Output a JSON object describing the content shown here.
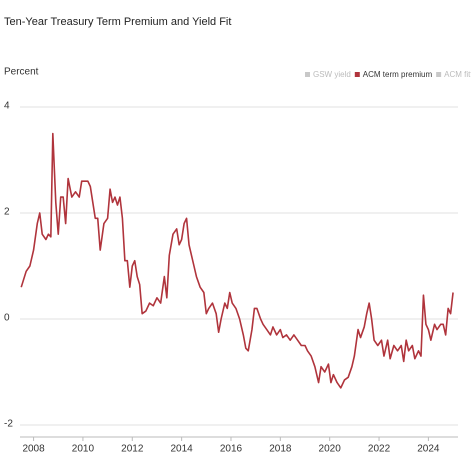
{
  "chart_data": {
    "type": "line",
    "title": "Ten-Year Treasury Term Premium and Yield Fit",
    "y_label": "Percent",
    "legend": [
      {
        "name": "GSW yield",
        "color": "#c8c8c8"
      },
      {
        "name": "ACM term premium",
        "color": "#b0343c"
      },
      {
        "name": "ACM fitted yield",
        "color": "#c8c8c8"
      }
    ],
    "x": [
      2007.5,
      2007.7,
      2007.85,
      2008.0,
      2008.15,
      2008.25,
      2008.35,
      2008.5,
      2008.6,
      2008.7,
      2008.78,
      2008.9,
      2009.0,
      2009.1,
      2009.2,
      2009.3,
      2009.4,
      2009.55,
      2009.7,
      2009.85,
      2009.95,
      2010.1,
      2010.2,
      2010.3,
      2010.4,
      2010.5,
      2010.6,
      2010.7,
      2010.85,
      2011.0,
      2011.1,
      2011.2,
      2011.3,
      2011.4,
      2011.5,
      2011.6,
      2011.7,
      2011.8,
      2011.9,
      2012.0,
      2012.1,
      2012.2,
      2012.3,
      2012.4,
      2012.55,
      2012.7,
      2012.85,
      2013.0,
      2013.15,
      2013.3,
      2013.4,
      2013.5,
      2013.65,
      2013.8,
      2013.9,
      2014.0,
      2014.1,
      2014.2,
      2014.3,
      2014.4,
      2014.5,
      2014.6,
      2014.75,
      2014.9,
      2015.0,
      2015.1,
      2015.25,
      2015.4,
      2015.5,
      2015.6,
      2015.75,
      2015.85,
      2015.95,
      2016.05,
      2016.2,
      2016.35,
      2016.5,
      2016.6,
      2016.7,
      2016.85,
      2016.95,
      2017.05,
      2017.2,
      2017.3,
      2017.45,
      2017.6,
      2017.7,
      2017.85,
      2018.0,
      2018.1,
      2018.25,
      2018.4,
      2018.55,
      2018.7,
      2018.85,
      2019.0,
      2019.1,
      2019.25,
      2019.4,
      2019.55,
      2019.65,
      2019.8,
      2019.95,
      2020.05,
      2020.15,
      2020.3,
      2020.45,
      2020.6,
      2020.75,
      2020.9,
      2021.0,
      2021.15,
      2021.25,
      2021.4,
      2021.5,
      2021.6,
      2021.7,
      2021.8,
      2021.95,
      2022.1,
      2022.2,
      2022.35,
      2022.45,
      2022.6,
      2022.75,
      2022.9,
      2023.0,
      2023.1,
      2023.2,
      2023.35,
      2023.45,
      2023.6,
      2023.7,
      2023.8,
      2023.9,
      2024.0,
      2024.1,
      2024.25,
      2024.35,
      2024.5,
      2024.6,
      2024.7,
      2024.8,
      2024.9,
      2025.0
    ],
    "series": [
      {
        "name": "ACM term premium",
        "color": "#b0343c",
        "values": [
          0.6,
          0.9,
          1.0,
          1.3,
          1.8,
          2.0,
          1.6,
          1.5,
          1.6,
          1.55,
          3.5,
          2.2,
          1.6,
          2.3,
          2.3,
          1.8,
          2.65,
          2.3,
          2.4,
          2.3,
          2.6,
          2.6,
          2.6,
          2.5,
          2.2,
          1.9,
          1.9,
          1.3,
          1.8,
          1.9,
          2.45,
          2.2,
          2.3,
          2.15,
          2.3,
          1.9,
          1.1,
          1.1,
          0.6,
          1.0,
          1.1,
          0.8,
          0.65,
          0.1,
          0.15,
          0.3,
          0.25,
          0.4,
          0.3,
          0.8,
          0.4,
          1.2,
          1.6,
          1.7,
          1.4,
          1.5,
          1.8,
          1.9,
          1.4,
          1.2,
          1.0,
          0.8,
          0.6,
          0.5,
          0.1,
          0.2,
          0.3,
          0.1,
          -0.25,
          0.0,
          0.3,
          0.2,
          0.5,
          0.3,
          0.2,
          0.0,
          -0.3,
          -0.55,
          -0.6,
          -0.2,
          0.2,
          0.2,
          0.0,
          -0.1,
          -0.2,
          -0.3,
          -0.15,
          -0.3,
          -0.2,
          -0.35,
          -0.3,
          -0.4,
          -0.3,
          -0.4,
          -0.5,
          -0.5,
          -0.6,
          -0.7,
          -0.9,
          -1.2,
          -0.9,
          -1.0,
          -0.85,
          -1.2,
          -1.05,
          -1.2,
          -1.3,
          -1.15,
          -1.1,
          -0.9,
          -0.7,
          -0.2,
          -0.35,
          -0.15,
          0.1,
          0.3,
          0.0,
          -0.4,
          -0.5,
          -0.4,
          -0.7,
          -0.4,
          -0.75,
          -0.5,
          -0.6,
          -0.5,
          -0.8,
          -0.4,
          -0.6,
          -0.5,
          -0.75,
          -0.6,
          -0.7,
          0.45,
          -0.1,
          -0.2,
          -0.4,
          -0.1,
          -0.2,
          -0.1,
          -0.1,
          -0.3,
          0.2,
          0.1,
          0.5
        ]
      }
    ],
    "xlim": [
      2007.45,
      2025.2
    ],
    "xticks": [
      2008,
      2010,
      2012,
      2014,
      2016,
      2018,
      2020,
      2022,
      2024
    ],
    "ylim": [
      -2,
      4
    ],
    "yticks": [
      -2,
      0,
      2,
      4
    ],
    "grid": true
  }
}
